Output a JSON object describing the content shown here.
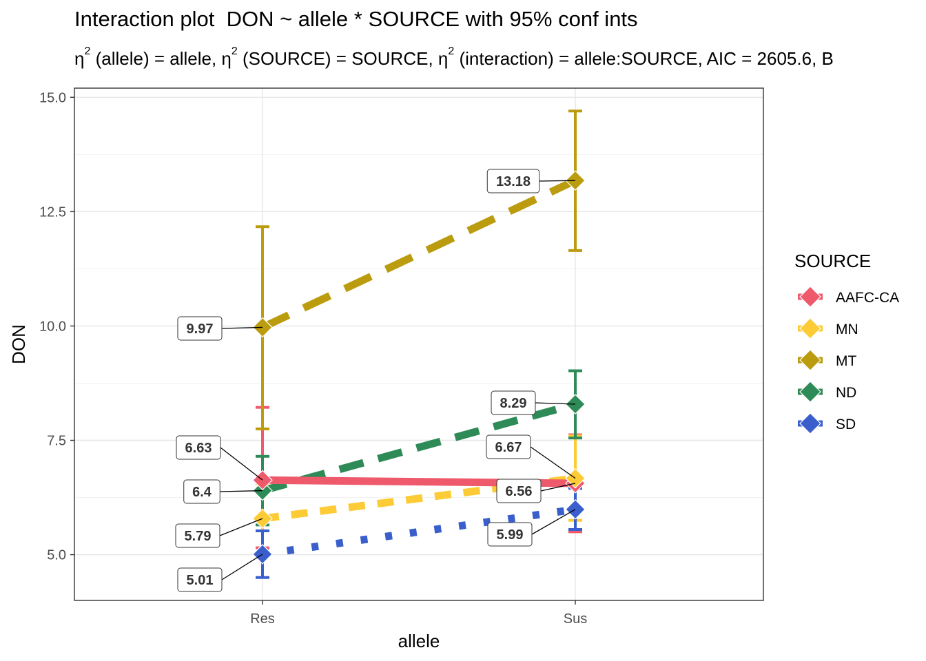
{
  "chart_data": {
    "type": "line",
    "title": "Interaction plot  DON ~ allele * SOURCE with 95% conf ints",
    "subtitle": {
      "parts": [
        "η",
        "2",
        " (allele) = allele, ",
        "η",
        "2",
        " (SOURCE) = SOURCE, ",
        "η",
        "2",
        " (interaction) = allele:SOURCE, AIC = 2605.6, B"
      ]
    },
    "xlabel": "allele",
    "ylabel": "DON",
    "categories": [
      "Res",
      "Sus"
    ],
    "ylim": [
      4.0,
      15.2
    ],
    "yticks": [
      5.0,
      7.5,
      10.0,
      12.5,
      15.0
    ],
    "ytick_labels": [
      "5.0",
      "7.5",
      "10.0",
      "12.5",
      "15.0"
    ],
    "grid": true,
    "legend": {
      "title": "SOURCE",
      "position": "right"
    },
    "series": [
      {
        "name": "AAFC-CA",
        "color": "#ee5a6b",
        "linestyle": "solid",
        "values": [
          6.63,
          6.56
        ],
        "ci_low": [
          5.15,
          5.5
        ],
        "ci_high": [
          8.22,
          7.62
        ],
        "labels": [
          "6.63",
          "6.56"
        ]
      },
      {
        "name": "MN",
        "color": "#fccb35",
        "linestyle": "dashed-short",
        "values": [
          5.79,
          6.67
        ],
        "ci_low": [
          5.05,
          5.75
        ],
        "ci_high": [
          6.55,
          7.6
        ],
        "labels": [
          "5.79",
          "6.67"
        ]
      },
      {
        "name": "MT",
        "color": "#bb9c0e",
        "linestyle": "dashed-long",
        "values": [
          9.97,
          13.18
        ],
        "ci_low": [
          7.75,
          11.65
        ],
        "ci_high": [
          12.17,
          14.7
        ],
        "labels": [
          "9.97",
          "13.18"
        ]
      },
      {
        "name": "ND",
        "color": "#2e8b57",
        "linestyle": "dashed-medium",
        "values": [
          6.4,
          8.29
        ],
        "ci_low": [
          5.65,
          7.55
        ],
        "ci_high": [
          7.15,
          9.02
        ],
        "labels": [
          "6.4",
          "8.29"
        ]
      },
      {
        "name": "SD",
        "color": "#3a5fcd",
        "linestyle": "dotted",
        "values": [
          5.01,
          5.99
        ],
        "ci_low": [
          4.5,
          5.55
        ],
        "ci_high": [
          5.52,
          6.45
        ],
        "labels": [
          "5.01",
          "5.99"
        ]
      }
    ]
  }
}
